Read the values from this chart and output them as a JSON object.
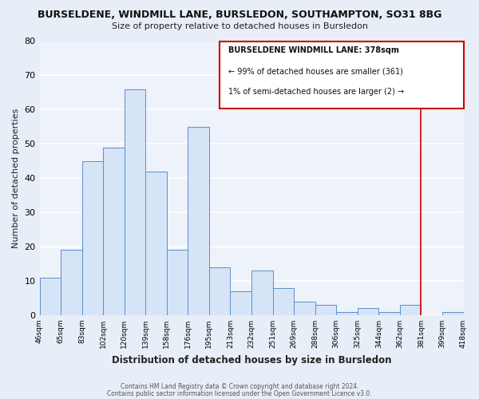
{
  "title": "BURSELDENE, WINDMILL LANE, BURSLEDON, SOUTHAMPTON, SO31 8BG",
  "subtitle": "Size of property relative to detached houses in Bursledon",
  "xlabel": "Distribution of detached houses by size in Bursledon",
  "ylabel": "Number of detached properties",
  "bar_values": [
    11,
    19,
    45,
    49,
    66,
    42,
    19,
    55,
    14,
    7,
    13,
    8,
    4,
    3,
    1,
    2,
    1,
    3,
    0,
    1
  ],
  "bar_labels": [
    "46sqm",
    "65sqm",
    "83sqm",
    "102sqm",
    "120sqm",
    "139sqm",
    "158sqm",
    "176sqm",
    "195sqm",
    "213sqm",
    "232sqm",
    "251sqm",
    "269sqm",
    "288sqm",
    "306sqm",
    "325sqm",
    "344sqm",
    "362sqm",
    "381sqm",
    "399sqm",
    "418sqm"
  ],
  "bar_color": "#d6e4f7",
  "bar_edge_color": "#5b8ec9",
  "ylim": [
    0,
    80
  ],
  "yticks": [
    0,
    10,
    20,
    30,
    40,
    50,
    60,
    70,
    80
  ],
  "vline_color": "#cc0000",
  "annotation_title": "BURSELDENE WINDMILL LANE: 378sqm",
  "annotation_line1": "← 99% of detached houses are smaller (361)",
  "annotation_line2": "1% of semi-detached houses are larger (2) →",
  "footer1": "Contains HM Land Registry data © Crown copyright and database right 2024.",
  "footer2": "Contains public sector information licensed under the Open Government Licence v3.0.",
  "background_color": "#e8eef8",
  "plot_bg_color": "#eef2fa"
}
